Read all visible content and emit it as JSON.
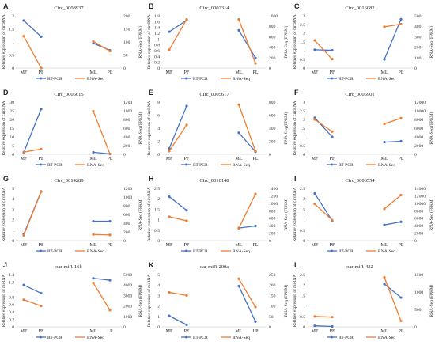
{
  "colors": {
    "rt_pcr": "#4472C4",
    "rna_seq": "#ED7D31",
    "axis": "#BFBFBF",
    "text": "#222222"
  },
  "legend": {
    "rt_pcr": "RT-PCR",
    "rna_seq": "RNA-Seq"
  },
  "chart_data": [
    {
      "label": "A",
      "title": "Circ_0008937",
      "type": "line",
      "categories": [
        "MF",
        "PF",
        "ML",
        "PL"
      ],
      "ylabel_left": "Relative expression of circRNA",
      "ylabel_right": "RNA-Seq (FPKM)",
      "ylim_left": [
        0,
        2
      ],
      "yticks_left": [
        0,
        0.5,
        1,
        1.5,
        2
      ],
      "ylim_right": [
        0,
        200
      ],
      "yticks_right": [
        0,
        50,
        100,
        150,
        200
      ],
      "series": [
        {
          "name": "RT-PCR",
          "axis": "left",
          "values": [
            1.82,
            1.2,
            0.95,
            0.68
          ]
        },
        {
          "name": "RNA-Seq",
          "axis": "right",
          "values": [
            122,
            0,
            102,
            65
          ]
        }
      ]
    },
    {
      "label": "B",
      "title": "Circ_0002314",
      "type": "line",
      "categories": [
        "MF",
        "PF",
        "ML",
        "PL"
      ],
      "ylabel_left": "Relative expression of circRNA",
      "ylabel_right": "RNA-Seq (FPKM)",
      "ylim_left": [
        0,
        1.8
      ],
      "yticks_left": [
        0,
        0.2,
        0.4,
        0.6,
        0.8,
        1,
        1.2,
        1.4,
        1.6,
        1.8
      ],
      "ylim_right": [
        0,
        1000
      ],
      "yticks_right": [
        0,
        200,
        400,
        600,
        800,
        1000
      ],
      "series": [
        {
          "name": "RT-PCR",
          "axis": "left",
          "values": [
            1.25,
            1.65,
            1.3,
            0.35
          ]
        },
        {
          "name": "RNA-Seq",
          "axis": "right",
          "values": [
            350,
            930,
            930,
            90
          ]
        }
      ]
    },
    {
      "label": "C",
      "title": "Circ_0016082",
      "type": "line",
      "categories": [
        "MF",
        "PF",
        "ML",
        "PL"
      ],
      "ylabel_left": "Relative expression of circRNA",
      "ylabel_right": "RNA-Seq (FPKM)",
      "ylim_left": [
        0,
        3
      ],
      "yticks_left": [
        0,
        0.5,
        1,
        1.5,
        2,
        2.5,
        3
      ],
      "ylim_right": [
        0,
        500
      ],
      "yticks_right": [
        0,
        100,
        200,
        300,
        400,
        500
      ],
      "series": [
        {
          "name": "RT-PCR",
          "axis": "left",
          "values": [
            1.05,
            1.02,
            0.5,
            2.8
          ]
        },
        {
          "name": "RNA-Seq",
          "axis": "right",
          "values": [
            265,
            85,
            395,
            420
          ]
        }
      ]
    },
    {
      "label": "D",
      "title": "Circ_0005615",
      "type": "line",
      "categories": [
        "MF",
        "PF",
        "ML",
        "PL"
      ],
      "ylabel_left": "Relative expression of circRNA",
      "ylabel_right": "RNA-Seq (FPKM)",
      "ylim_left": [
        0,
        30
      ],
      "yticks_left": [
        0,
        5,
        10,
        15,
        20,
        25,
        30
      ],
      "ylim_right": [
        0,
        1200
      ],
      "yticks_right": [
        0,
        200,
        400,
        600,
        800,
        1000,
        1200
      ],
      "series": [
        {
          "name": "RT-PCR",
          "axis": "left",
          "values": [
            1,
            26,
            1.2,
            0.2
          ]
        },
        {
          "name": "RNA-Seq",
          "axis": "right",
          "values": [
            50,
            120,
            990,
            10
          ]
        }
      ]
    },
    {
      "label": "E",
      "title": "Circ_0005617",
      "type": "line",
      "categories": [
        "MF",
        "PF",
        "ML",
        "PL"
      ],
      "ylabel_left": "Relative expression of circRNA",
      "ylabel_right": "RNA-Seq (FPKM)",
      "ylim_left": [
        0,
        8
      ],
      "yticks_left": [
        0,
        2,
        4,
        6,
        8
      ],
      "ylim_right": [
        0,
        800
      ],
      "yticks_right": [
        0,
        200,
        400,
        600,
        800
      ],
      "series": [
        {
          "name": "RT-PCR",
          "axis": "left",
          "values": [
            0.9,
            7.4,
            3.3,
            0.4
          ]
        },
        {
          "name": "RNA-Seq",
          "axis": "right",
          "values": [
            50,
            450,
            760,
            50
          ]
        }
      ]
    },
    {
      "label": "F",
      "title": "Circ_0005901",
      "type": "line",
      "categories": [
        "MF",
        "PF",
        "ML",
        "PL"
      ],
      "ylabel_left": "Relative expression of circRNA",
      "ylabel_right": "RNA-Seq (FPKM)",
      "ylim_left": [
        0,
        3
      ],
      "yticks_left": [
        0,
        0.5,
        1,
        1.5,
        2,
        2.5,
        3
      ],
      "ylim_right": [
        0,
        12000
      ],
      "yticks_right": [
        0,
        2000,
        4000,
        6000,
        8000,
        10000,
        12000
      ],
      "series": [
        {
          "name": "RT-PCR",
          "axis": "left",
          "values": [
            2.1,
            1.0,
            0.7,
            0.75
          ]
        },
        {
          "name": "RNA-Seq",
          "axis": "right",
          "values": [
            8000,
            5200,
            7000,
            8300
          ]
        }
      ]
    },
    {
      "label": "G",
      "title": "Circ_0014289",
      "type": "line",
      "categories": [
        "MF",
        "PF",
        "ML",
        "PL"
      ],
      "ylabel_left": "Relative expression of circRNA",
      "ylabel_right": "RNA-Seq (FPKM)",
      "ylim_left": [
        0,
        5
      ],
      "yticks_left": [
        0,
        1,
        2,
        3,
        4,
        5
      ],
      "ylim_right": [
        0,
        1200
      ],
      "yticks_right": [
        0,
        200,
        400,
        600,
        800,
        1000,
        1200
      ],
      "series": [
        {
          "name": "RT-PCR",
          "axis": "left",
          "values": [
            0.6,
            4.7,
            1.85,
            1.85
          ]
        },
        {
          "name": "RNA-Seq",
          "axis": "right",
          "values": [
            120,
            1120,
            140,
            130
          ]
        }
      ]
    },
    {
      "label": "H",
      "title": "Circ_0010148",
      "type": "line",
      "categories": [
        "MF",
        "PF",
        "ML",
        "PL"
      ],
      "ylabel_left": "Relative expression of circRNA",
      "ylabel_right": "RNA-Seq (FPKM)",
      "ylim_left": [
        0,
        2.5
      ],
      "yticks_left": [
        0,
        0.5,
        1,
        1.5,
        2,
        2.5
      ],
      "ylim_right": [
        0,
        1400
      ],
      "yticks_right": [
        0,
        200,
        400,
        600,
        800,
        1000,
        1200,
        1400
      ],
      "series": [
        {
          "name": "RT-PCR",
          "axis": "left",
          "values": [
            2.1,
            1.45,
            0.6,
            0.7
          ]
        },
        {
          "name": "RNA-Seq",
          "axis": "right",
          "values": [
            640,
            530,
            330,
            1250
          ]
        }
      ]
    },
    {
      "label": "I",
      "title": "Circ_0006554",
      "type": "line",
      "categories": [
        "MF",
        "PF",
        "ML",
        "PL"
      ],
      "ylabel_left": "Relative expression of circRNA",
      "ylabel_right": "RNA-Seq (FPKM)",
      "ylim_left": [
        0,
        2.5
      ],
      "yticks_left": [
        0,
        0.5,
        1,
        1.5,
        2,
        2.5
      ],
      "ylim_right": [
        0,
        14000
      ],
      "yticks_right": [
        0,
        2000,
        4000,
        6000,
        8000,
        10000,
        12000,
        14000
      ],
      "series": [
        {
          "name": "RT-PCR",
          "axis": "left",
          "values": [
            2.25,
            0.95,
            0.75,
            0.9
          ]
        },
        {
          "name": "RNA-Seq",
          "axis": "right",
          "values": [
            9800,
            5500,
            8500,
            12200
          ]
        }
      ]
    },
    {
      "label": "J",
      "title": "oar-miR-16b",
      "type": "line",
      "categories": [
        "MF",
        "PF",
        "ML",
        "LP"
      ],
      "ylabel_left": "Relative expression of miRNA",
      "ylabel_right": "RNA-Seq (FPKM)",
      "ylim_left": [
        0,
        1.4
      ],
      "yticks_left": [
        0,
        0.2,
        0.4,
        0.6,
        0.8,
        1,
        1.2,
        1.4
      ],
      "ylim_right": [
        0,
        5000
      ],
      "yticks_right": [
        0,
        1000,
        2000,
        3000,
        4000,
        5000
      ],
      "series": [
        {
          "name": "RT-PCR",
          "axis": "left",
          "values": [
            1.12,
            0.9,
            1.3,
            1.25
          ]
        },
        {
          "name": "RNA-Seq",
          "axis": "right",
          "values": [
            2600,
            2000,
            4200,
            1600
          ]
        }
      ]
    },
    {
      "label": "K",
      "title": "oar-miR-200a",
      "type": "line",
      "categories": [
        "MF",
        "PF",
        "ML",
        "LP"
      ],
      "ylabel_left": "Relative expression of miRNA",
      "ylabel_right": "RNA-Seq (FPKM)",
      "ylim_left": [
        0,
        5
      ],
      "yticks_left": [
        0,
        1,
        2,
        3,
        4,
        5
      ],
      "ylim_right": [
        0,
        250
      ],
      "yticks_right": [
        0,
        50,
        100,
        150,
        200,
        250
      ],
      "series": [
        {
          "name": "RT-PCR",
          "axis": "left",
          "values": [
            1.05,
            0.2,
            3.9,
            0.5
          ]
        },
        {
          "name": "RNA-Seq",
          "axis": "right",
          "values": [
            165,
            150,
            230,
            95
          ]
        }
      ]
    },
    {
      "label": "L",
      "title": "oar-miR-432",
      "type": "line",
      "categories": [
        "MF",
        "PF",
        "ML",
        "PL"
      ],
      "ylabel_left": "Relative expression of miRNA",
      "ylabel_right": "RNA-Seq (FPKM)",
      "ylim_left": [
        0,
        2.5
      ],
      "yticks_left": [
        0,
        0.5,
        1,
        1.5,
        2,
        2.5
      ],
      "ylim_right": [
        0,
        1500
      ],
      "yticks_right": [
        0,
        500,
        1000,
        1500
      ],
      "series": [
        {
          "name": "RT-PCR",
          "axis": "left",
          "values": [
            0.05,
            0.02,
            2.05,
            1.4
          ]
        },
        {
          "name": "RNA-Seq",
          "axis": "right",
          "values": [
            300,
            280,
            1420,
            170
          ]
        }
      ]
    }
  ]
}
